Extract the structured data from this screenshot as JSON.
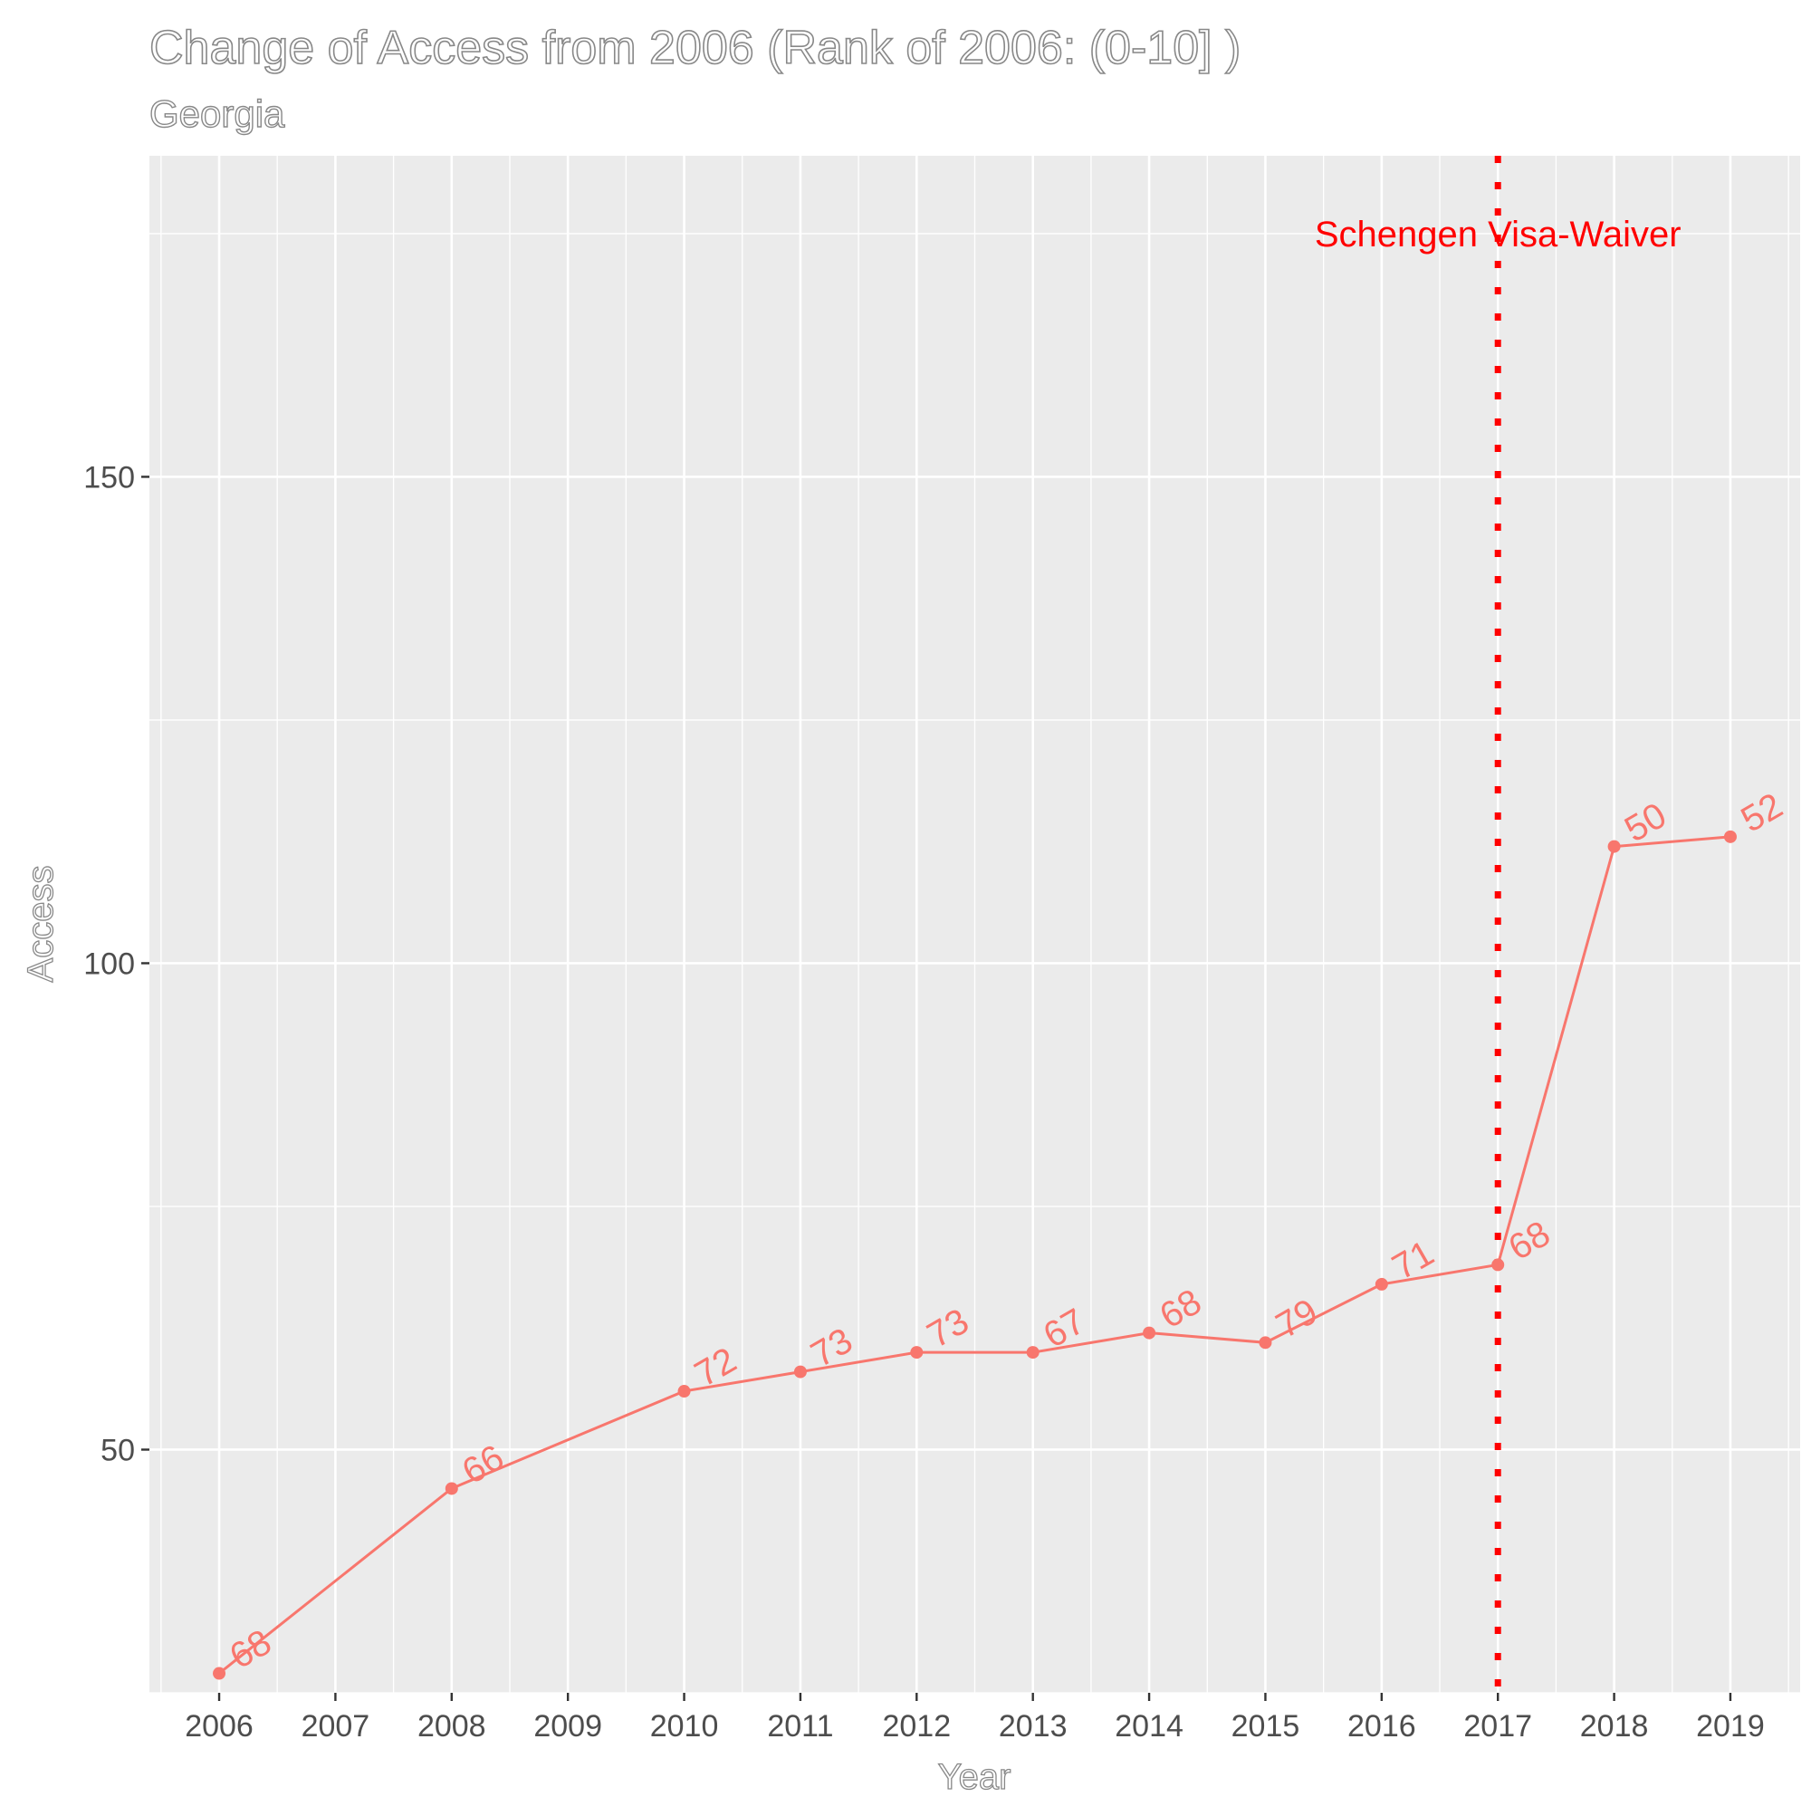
{
  "chart_data": {
    "type": "line",
    "title": "Change of Access from 2006 (Rank of 2006: (0-10] )",
    "subtitle": "Georgia",
    "xlabel": "Year",
    "ylabel": "Access",
    "x": [
      2006,
      2008,
      2010,
      2011,
      2012,
      2013,
      2014,
      2015,
      2016,
      2017,
      2018,
      2019
    ],
    "x_ticks": [
      "2006",
      "2007",
      "2008",
      "2009",
      "2010",
      "2011",
      "2012",
      "2013",
      "2014",
      "2015",
      "2016",
      "2017",
      "2018",
      "2019"
    ],
    "y_ticks": [
      "50",
      "100",
      "150"
    ],
    "xlim": [
      2005.4,
      2019.6
    ],
    "ylim": [
      25,
      183
    ],
    "series": [
      {
        "values": [
          27,
          46,
          56,
          58,
          60,
          60,
          62,
          61,
          67,
          69,
          112,
          113
        ],
        "point_labels": [
          "68",
          "66",
          "72",
          "73",
          "73",
          "67",
          "68",
          "79",
          "71",
          "68",
          "50",
          "52"
        ],
        "color": "#f8766d"
      }
    ],
    "annotations": [
      {
        "type": "vline",
        "x": 2017,
        "label": "Schengen Visa-Waiver",
        "label_y": 175,
        "color": "#ff0000",
        "linestyle": "dotted"
      }
    ],
    "grid": true,
    "panel_background": "#ebebeb",
    "grid_color": "#ffffff",
    "legend": "none"
  }
}
